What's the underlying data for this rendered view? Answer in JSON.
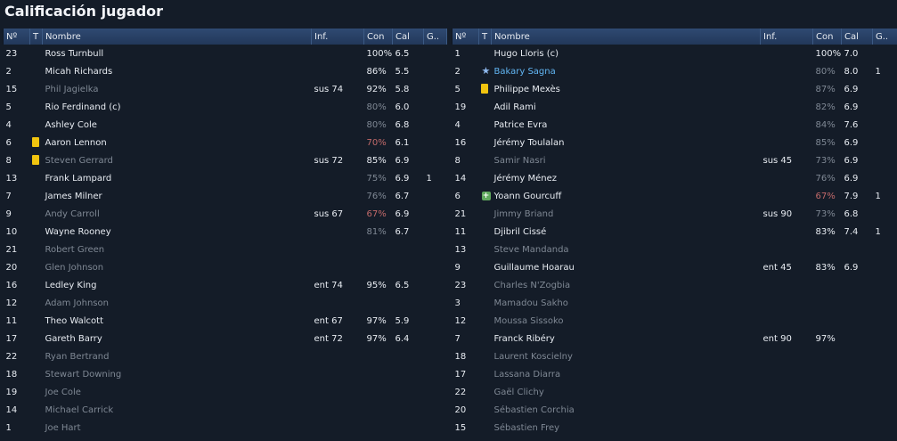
{
  "title": "Calificación jugador",
  "columns": {
    "num": "Nº",
    "t": "T",
    "name": "Nombre",
    "inf": "Inf.",
    "con": "Con",
    "cal": "Cal",
    "g": "G.."
  },
  "left_team": [
    {
      "num": "23",
      "icon": "",
      "name": "Ross Turnbull",
      "inf": "",
      "con": "100%",
      "cal": "6.5",
      "g": "",
      "sub": false,
      "con_color": ""
    },
    {
      "num": "2",
      "icon": "",
      "name": "Micah Richards",
      "inf": "",
      "con": "86%",
      "cal": "5.5",
      "g": "",
      "sub": false,
      "con_color": ""
    },
    {
      "num": "15",
      "icon": "",
      "name": "Phil Jagielka",
      "inf": "sus 74",
      "con": "92%",
      "cal": "5.8",
      "g": "",
      "sub": true,
      "con_color": ""
    },
    {
      "num": "5",
      "icon": "",
      "name": "Rio Ferdinand (c)",
      "inf": "",
      "con": "80%",
      "cal": "6.0",
      "g": "",
      "sub": false,
      "con_color": "grey"
    },
    {
      "num": "4",
      "icon": "",
      "name": "Ashley Cole",
      "inf": "",
      "con": "80%",
      "cal": "6.8",
      "g": "",
      "sub": false,
      "con_color": "grey"
    },
    {
      "num": "6",
      "icon": "yellow-card",
      "name": "Aaron Lennon",
      "inf": "",
      "con": "70%",
      "cal": "6.1",
      "g": "",
      "sub": false,
      "con_color": "red"
    },
    {
      "num": "8",
      "icon": "yellow-card",
      "name": "Steven Gerrard",
      "inf": "sus 72",
      "con": "85%",
      "cal": "6.9",
      "g": "",
      "sub": true,
      "con_color": ""
    },
    {
      "num": "13",
      "icon": "",
      "name": "Frank Lampard",
      "inf": "",
      "con": "75%",
      "cal": "6.9",
      "g": "1",
      "sub": false,
      "con_color": "grey"
    },
    {
      "num": "7",
      "icon": "",
      "name": "James Milner",
      "inf": "",
      "con": "76%",
      "cal": "6.7",
      "g": "",
      "sub": false,
      "con_color": "grey"
    },
    {
      "num": "9",
      "icon": "",
      "name": "Andy Carroll",
      "inf": "sus 67",
      "con": "67%",
      "cal": "6.9",
      "g": "",
      "sub": true,
      "con_color": "red"
    },
    {
      "num": "10",
      "icon": "",
      "name": "Wayne Rooney",
      "inf": "",
      "con": "81%",
      "cal": "6.7",
      "g": "",
      "sub": false,
      "con_color": "grey"
    },
    {
      "num": "21",
      "icon": "",
      "name": "Robert Green",
      "inf": "",
      "con": "",
      "cal": "",
      "g": "",
      "sub": true,
      "con_color": ""
    },
    {
      "num": "20",
      "icon": "",
      "name": "Glen Johnson",
      "inf": "",
      "con": "",
      "cal": "",
      "g": "",
      "sub": true,
      "con_color": ""
    },
    {
      "num": "16",
      "icon": "",
      "name": "Ledley King",
      "inf": "ent 74",
      "con": "95%",
      "cal": "6.5",
      "g": "",
      "sub": false,
      "con_color": ""
    },
    {
      "num": "12",
      "icon": "",
      "name": "Adam Johnson",
      "inf": "",
      "con": "",
      "cal": "",
      "g": "",
      "sub": true,
      "con_color": ""
    },
    {
      "num": "11",
      "icon": "",
      "name": "Theo Walcott",
      "inf": "ent 67",
      "con": "97%",
      "cal": "5.9",
      "g": "",
      "sub": false,
      "con_color": ""
    },
    {
      "num": "17",
      "icon": "",
      "name": "Gareth Barry",
      "inf": "ent 72",
      "con": "97%",
      "cal": "6.4",
      "g": "",
      "sub": false,
      "con_color": ""
    },
    {
      "num": "22",
      "icon": "",
      "name": "Ryan Bertrand",
      "inf": "",
      "con": "",
      "cal": "",
      "g": "",
      "sub": true,
      "con_color": ""
    },
    {
      "num": "18",
      "icon": "",
      "name": "Stewart Downing",
      "inf": "",
      "con": "",
      "cal": "",
      "g": "",
      "sub": true,
      "con_color": ""
    },
    {
      "num": "19",
      "icon": "",
      "name": "Joe Cole",
      "inf": "",
      "con": "",
      "cal": "",
      "g": "",
      "sub": true,
      "con_color": ""
    },
    {
      "num": "14",
      "icon": "",
      "name": "Michael Carrick",
      "inf": "",
      "con": "",
      "cal": "",
      "g": "",
      "sub": true,
      "con_color": ""
    },
    {
      "num": "1",
      "icon": "",
      "name": "Joe Hart",
      "inf": "",
      "con": "",
      "cal": "",
      "g": "",
      "sub": true,
      "con_color": ""
    }
  ],
  "right_team": [
    {
      "num": "1",
      "icon": "",
      "name": "Hugo Lloris (c)",
      "inf": "",
      "con": "100%",
      "cal": "7.0",
      "g": "",
      "sub": false,
      "con_color": ""
    },
    {
      "num": "2",
      "icon": "star",
      "name": "Bakary Sagna",
      "inf": "",
      "con": "80%",
      "cal": "8.0",
      "g": "1",
      "sub": false,
      "con_color": "grey",
      "star": true
    },
    {
      "num": "5",
      "icon": "yellow-card",
      "name": "Philippe Mexès",
      "inf": "",
      "con": "87%",
      "cal": "6.9",
      "g": "",
      "sub": false,
      "con_color": "grey"
    },
    {
      "num": "19",
      "icon": "",
      "name": "Adil Rami",
      "inf": "",
      "con": "82%",
      "cal": "6.9",
      "g": "",
      "sub": false,
      "con_color": "grey"
    },
    {
      "num": "4",
      "icon": "",
      "name": "Patrice Evra",
      "inf": "",
      "con": "84%",
      "cal": "7.6",
      "g": "",
      "sub": false,
      "con_color": "grey"
    },
    {
      "num": "16",
      "icon": "",
      "name": "Jérémy Toulalan",
      "inf": "",
      "con": "85%",
      "cal": "6.9",
      "g": "",
      "sub": false,
      "con_color": "grey"
    },
    {
      "num": "8",
      "icon": "",
      "name": "Samir Nasri",
      "inf": "sus 45",
      "con": "73%",
      "cal": "6.9",
      "g": "",
      "sub": true,
      "con_color": "grey"
    },
    {
      "num": "14",
      "icon": "",
      "name": "Jérémy Ménez",
      "inf": "",
      "con": "76%",
      "cal": "6.9",
      "g": "",
      "sub": false,
      "con_color": "grey"
    },
    {
      "num": "6",
      "icon": "plus",
      "name": "Yoann Gourcuff",
      "inf": "",
      "con": "67%",
      "cal": "7.9",
      "g": "1",
      "sub": false,
      "con_color": "red"
    },
    {
      "num": "21",
      "icon": "",
      "name": "Jimmy Briand",
      "inf": "sus 90",
      "con": "73%",
      "cal": "6.8",
      "g": "",
      "sub": true,
      "con_color": "grey"
    },
    {
      "num": "11",
      "icon": "",
      "name": "Djibril Cissé",
      "inf": "",
      "con": "83%",
      "cal": "7.4",
      "g": "1",
      "sub": false,
      "con_color": ""
    },
    {
      "num": "13",
      "icon": "",
      "name": "Steve Mandanda",
      "inf": "",
      "con": "",
      "cal": "",
      "g": "",
      "sub": true,
      "con_color": ""
    },
    {
      "num": "9",
      "icon": "",
      "name": "Guillaume Hoarau",
      "inf": "ent 45",
      "con": "83%",
      "cal": "6.9",
      "g": "",
      "sub": false,
      "con_color": ""
    },
    {
      "num": "23",
      "icon": "",
      "name": "Charles N'Zogbia",
      "inf": "",
      "con": "",
      "cal": "",
      "g": "",
      "sub": true,
      "con_color": ""
    },
    {
      "num": "3",
      "icon": "",
      "name": "Mamadou Sakho",
      "inf": "",
      "con": "",
      "cal": "",
      "g": "",
      "sub": true,
      "con_color": ""
    },
    {
      "num": "12",
      "icon": "",
      "name": "Moussa Sissoko",
      "inf": "",
      "con": "",
      "cal": "",
      "g": "",
      "sub": true,
      "con_color": ""
    },
    {
      "num": "7",
      "icon": "",
      "name": "Franck Ribéry",
      "inf": "ent 90",
      "con": "97%",
      "cal": "",
      "g": "",
      "sub": false,
      "con_color": ""
    },
    {
      "num": "18",
      "icon": "",
      "name": "Laurent Koscielny",
      "inf": "",
      "con": "",
      "cal": "",
      "g": "",
      "sub": true,
      "con_color": ""
    },
    {
      "num": "17",
      "icon": "",
      "name": "Lassana Diarra",
      "inf": "",
      "con": "",
      "cal": "",
      "g": "",
      "sub": true,
      "con_color": ""
    },
    {
      "num": "22",
      "icon": "",
      "name": "Gaël Clichy",
      "inf": "",
      "con": "",
      "cal": "",
      "g": "",
      "sub": true,
      "con_color": ""
    },
    {
      "num": "20",
      "icon": "",
      "name": "Sébastien Corchia",
      "inf": "",
      "con": "",
      "cal": "",
      "g": "",
      "sub": true,
      "con_color": ""
    },
    {
      "num": "15",
      "icon": "",
      "name": "Sébastien Frey",
      "inf": "",
      "con": "",
      "cal": "",
      "g": "",
      "sub": true,
      "con_color": ""
    }
  ]
}
